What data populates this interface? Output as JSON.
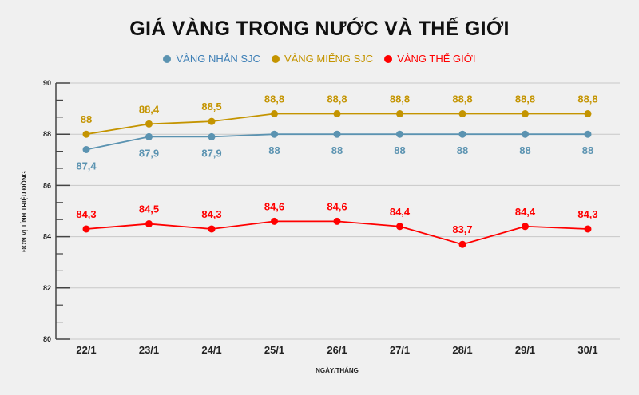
{
  "chart_data": {
    "type": "line",
    "title": "GIÁ VÀNG TRONG NƯỚC VÀ THẾ GIỚI",
    "xlabel": "NGÀY/THÁNG",
    "ylabel": "ĐƠN VỊ TÍNH TRIỆU ĐỒNG",
    "categories": [
      "22/1",
      "23/1",
      "24/1",
      "25/1",
      "26/1",
      "27/1",
      "28/1",
      "29/1",
      "30/1"
    ],
    "ylim": [
      80,
      90
    ],
    "yticks": [
      "80",
      "82",
      "84",
      "86",
      "88",
      "90"
    ],
    "grid": true,
    "legend_position": "top",
    "series": [
      {
        "name": "VÀNG NHẪN SJC",
        "color": "#5b93b1",
        "label_position": "below",
        "values": [
          87.4,
          87.9,
          87.9,
          88,
          88,
          88,
          88,
          88,
          88
        ],
        "labels": [
          "87,4",
          "87,9",
          "87,9",
          "88",
          "88",
          "88",
          "88",
          "88",
          "88"
        ]
      },
      {
        "name": "VÀNG MIẾNG SJC",
        "color": "#c49400",
        "label_position": "above",
        "values": [
          88,
          88.4,
          88.5,
          88.8,
          88.8,
          88.8,
          88.8,
          88.8,
          88.8
        ],
        "labels": [
          "88",
          "88,4",
          "88,5",
          "88,8",
          "88,8",
          "88,8",
          "88,8",
          "88,8",
          "88,8"
        ]
      },
      {
        "name": "VÀNG THẾ GIỚI",
        "color": "#ff0000",
        "label_position": "above",
        "values": [
          84.3,
          84.5,
          84.3,
          84.6,
          84.6,
          84.4,
          83.7,
          84.4,
          84.3
        ],
        "labels": [
          "84,3",
          "84,5",
          "84,3",
          "84,6",
          "84,6",
          "84,4",
          "83,7",
          "84,4",
          "84,3"
        ]
      }
    ]
  }
}
